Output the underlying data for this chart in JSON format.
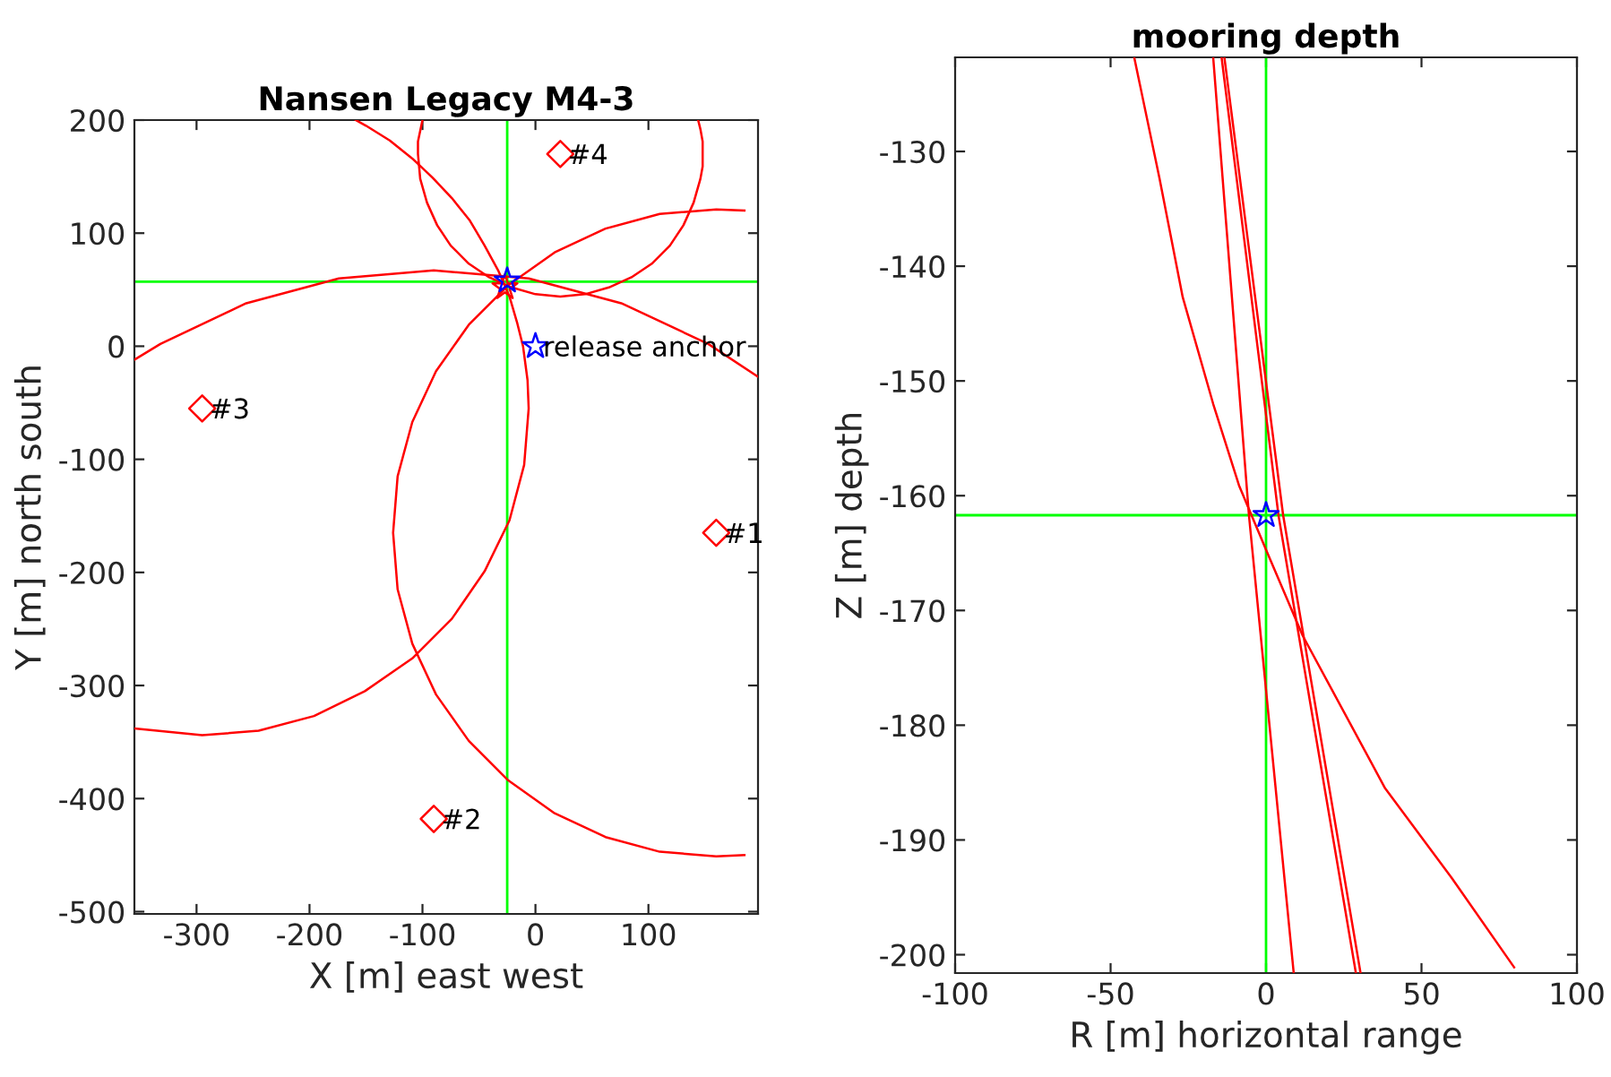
{
  "chart_data": [
    {
      "type": "line",
      "title": "Nansen Legacy M4-3",
      "xlabel": "X [m] east west",
      "ylabel": "Y [m] north south",
      "xlim": [
        -355,
        197
      ],
      "ylim": [
        -502,
        200
      ],
      "xticks": [
        -300,
        -200,
        -100,
        0,
        100
      ],
      "yticks": [
        -500,
        -400,
        -300,
        -200,
        -100,
        0,
        100,
        200
      ],
      "grid": false,
      "legend": false,
      "ref_lines": [
        {
          "axis": "x",
          "value": -25,
          "color": "#00ff00"
        },
        {
          "axis": "y",
          "value": 57,
          "color": "#00ff00"
        }
      ],
      "series": [
        {
          "color": "#ff0000",
          "marker": "none",
          "x": [
            185,
            160,
            110,
            62,
            17,
            -24,
            -59,
            -88,
            -109,
            -122,
            -126,
            -122,
            -109,
            -88,
            -59,
            -24,
            17,
            62,
            110,
            160,
            185
          ],
          "values": [
            120,
            121,
            117,
            104,
            83,
            54,
            19,
            -22,
            -67,
            -115,
            -165,
            -215,
            -263,
            -308,
            -349,
            -384,
            -413,
            -434,
            -447,
            -451,
            -450
          ]
        },
        {
          "color": "#ff0000",
          "marker": "none",
          "x": [
            197,
            153,
            76,
            -6,
            -90,
            -174,
            -256,
            -332,
            -355
          ],
          "values": [
            -27,
            2,
            38,
            60,
            67,
            60,
            38,
            2,
            -12
          ]
        },
        {
          "color": "#ff0000",
          "marker": "none",
          "x": [
            -355,
            -295,
            -245,
            -196,
            -151,
            -109,
            -74,
            -45,
            -23,
            -10,
            -6,
            -7,
            -11,
            -16,
            -23,
            -33,
            -45,
            -58,
            -74,
            -91,
            -109,
            -129,
            -150,
            -159
          ],
          "values": [
            -338,
            -344,
            -340,
            -327,
            -305,
            -276,
            -241,
            -199,
            -154,
            -105,
            -55,
            -30,
            0,
            20,
            44,
            67,
            89,
            111,
            131,
            149,
            166,
            182,
            195,
            200
          ]
        },
        {
          "color": "#ff0000",
          "marker": "none",
          "x": [
            144,
            146,
            148,
            148,
            146,
            140,
            131,
            119,
            103,
            85,
            65,
            44,
            22,
            0,
            -21,
            -41,
            -59,
            -75,
            -87,
            -96,
            -102,
            -104,
            -104,
            -100
          ],
          "values": [
            200,
            192,
            181,
            159,
            148,
            127,
            107,
            89,
            73,
            61,
            52,
            46,
            44,
            46,
            52,
            61,
            73,
            89,
            107,
            127,
            148,
            170,
            181,
            200
          ]
        },
        {
          "type": "scatter",
          "color": "#ff0000",
          "marker": "diamond",
          "x": [
            160,
            -90,
            -295,
            22
          ],
          "values": [
            -165,
            -418,
            -55,
            170
          ]
        },
        {
          "type": "scatter",
          "color": "#ff0000",
          "marker": "star",
          "x": [
            -27
          ],
          "values": [
            52
          ]
        },
        {
          "type": "scatter",
          "color": "#0000ff",
          "marker": "star",
          "x": [
            0,
            -25
          ],
          "values": [
            0,
            58
          ]
        }
      ],
      "annotations": [
        {
          "text": "#1",
          "x": 160,
          "y": -165
        },
        {
          "text": "#2",
          "x": -90,
          "y": -418
        },
        {
          "text": "#3",
          "x": -295,
          "y": -55
        },
        {
          "text": "#4",
          "x": 22,
          "y": 170
        },
        {
          "text": "release anchor",
          "x": 0,
          "y": 0
        }
      ]
    },
    {
      "type": "line",
      "title": "mooring depth",
      "xlabel": "R [m] horizontal range",
      "ylabel": "Z [m] depth",
      "xlim": [
        -100,
        100
      ],
      "ylim": [
        -201.6,
        -121.8
      ],
      "xticks": [
        -100,
        -50,
        0,
        50,
        100
      ],
      "yticks": [
        -200,
        -190,
        -180,
        -170,
        -160,
        -150,
        -140,
        -130
      ],
      "grid": false,
      "legend": false,
      "ref_lines": [
        {
          "axis": "x",
          "value": 0,
          "color": "#00ff00"
        },
        {
          "axis": "y",
          "value": -161.7,
          "color": "#00ff00"
        }
      ],
      "series": [
        {
          "color": "#ff0000",
          "marker": "none",
          "x": [
            -42.4,
            -34.3,
            -26.8,
            -17,
            -8.7,
            0.3,
            11.8,
            38.3,
            59.7,
            79.8
          ],
          "values": [
            -121.8,
            -132.3,
            -142.7,
            -152,
            -159.1,
            -164.9,
            -172.2,
            -185.5,
            -193.3,
            -201.1
          ]
        },
        {
          "color": "#ff0000",
          "marker": "none",
          "x": [
            -17,
            -5.5,
            8.9
          ],
          "values": [
            -121.8,
            -161.7,
            -201.6
          ]
        },
        {
          "color": "#ff0000",
          "marker": "none",
          "x": [
            -14.3,
            4,
            28.9
          ],
          "values": [
            -121.8,
            -161.7,
            -201.6
          ]
        },
        {
          "color": "#ff0000",
          "marker": "none",
          "x": [
            -13.4,
            5.5,
            30.4
          ],
          "values": [
            -121.8,
            -161.7,
            -201.6
          ]
        },
        {
          "type": "scatter",
          "color": "#0000ff",
          "marker": "star",
          "x": [
            0
          ],
          "values": [
            -161.7
          ]
        }
      ]
    }
  ]
}
